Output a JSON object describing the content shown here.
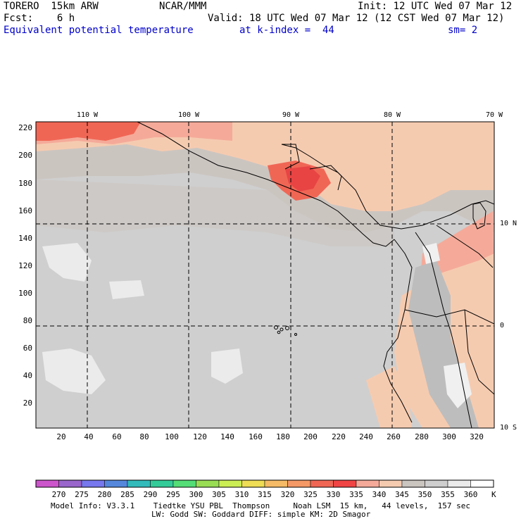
{
  "header": {
    "model": "TORERO  15km ARW",
    "center": "NCAR/MMM",
    "init": "Init: 12 UTC Wed 07 Mar 12",
    "fcst": "Fcst:    6 h",
    "valid": "Valid: 18 UTC Wed 07 Mar 12 (12 CST Wed 07 Mar 12)",
    "field": "Equivalent potential temperature",
    "level": "at k-index =  44",
    "smooth": "sm= 2"
  },
  "map": {
    "top_lon_labels": [
      "110 W",
      "100 W",
      "90 W",
      "80 W",
      "70 W"
    ],
    "right_lat_labels": [
      "10 N",
      "0",
      "10 S"
    ],
    "x_grid_ticks": [
      "20",
      "40",
      "60",
      "80",
      "100",
      "120",
      "140",
      "160",
      "180",
      "200",
      "220",
      "240",
      "260",
      "280",
      "300",
      "320"
    ],
    "y_grid_ticks": [
      "220",
      "200",
      "180",
      "160",
      "140",
      "120",
      "100",
      "80",
      "60",
      "40",
      "20"
    ]
  },
  "colorbar": {
    "labels": [
      "270",
      "275",
      "280",
      "285",
      "290",
      "295",
      "300",
      "305",
      "310",
      "315",
      "320",
      "325",
      "330",
      "335",
      "340",
      "345",
      "350",
      "355",
      "360"
    ],
    "unit": "K",
    "colors": [
      "#cc55cc",
      "#9966cc",
      "#7777ee",
      "#5588dd",
      "#33bbbb",
      "#33cc99",
      "#55dd77",
      "#99dd55",
      "#ccee55",
      "#eedd55",
      "#f5bb66",
      "#f59966",
      "#f06655",
      "#f04444",
      "#f5aa99",
      "#f5cbb0",
      "#cbc5c0",
      "#cfcfcf",
      "#ebebeb",
      "#ffffff"
    ]
  },
  "footer": {
    "line1": "Model Info: V3.3.1    Tiedtke YSU PBL  Thompson     Noah LSM  15 km,   44 levels,  157 sec",
    "line2": "LW: Godd SW: Goddard DIFF: simple KM: 2D Smagor"
  }
}
